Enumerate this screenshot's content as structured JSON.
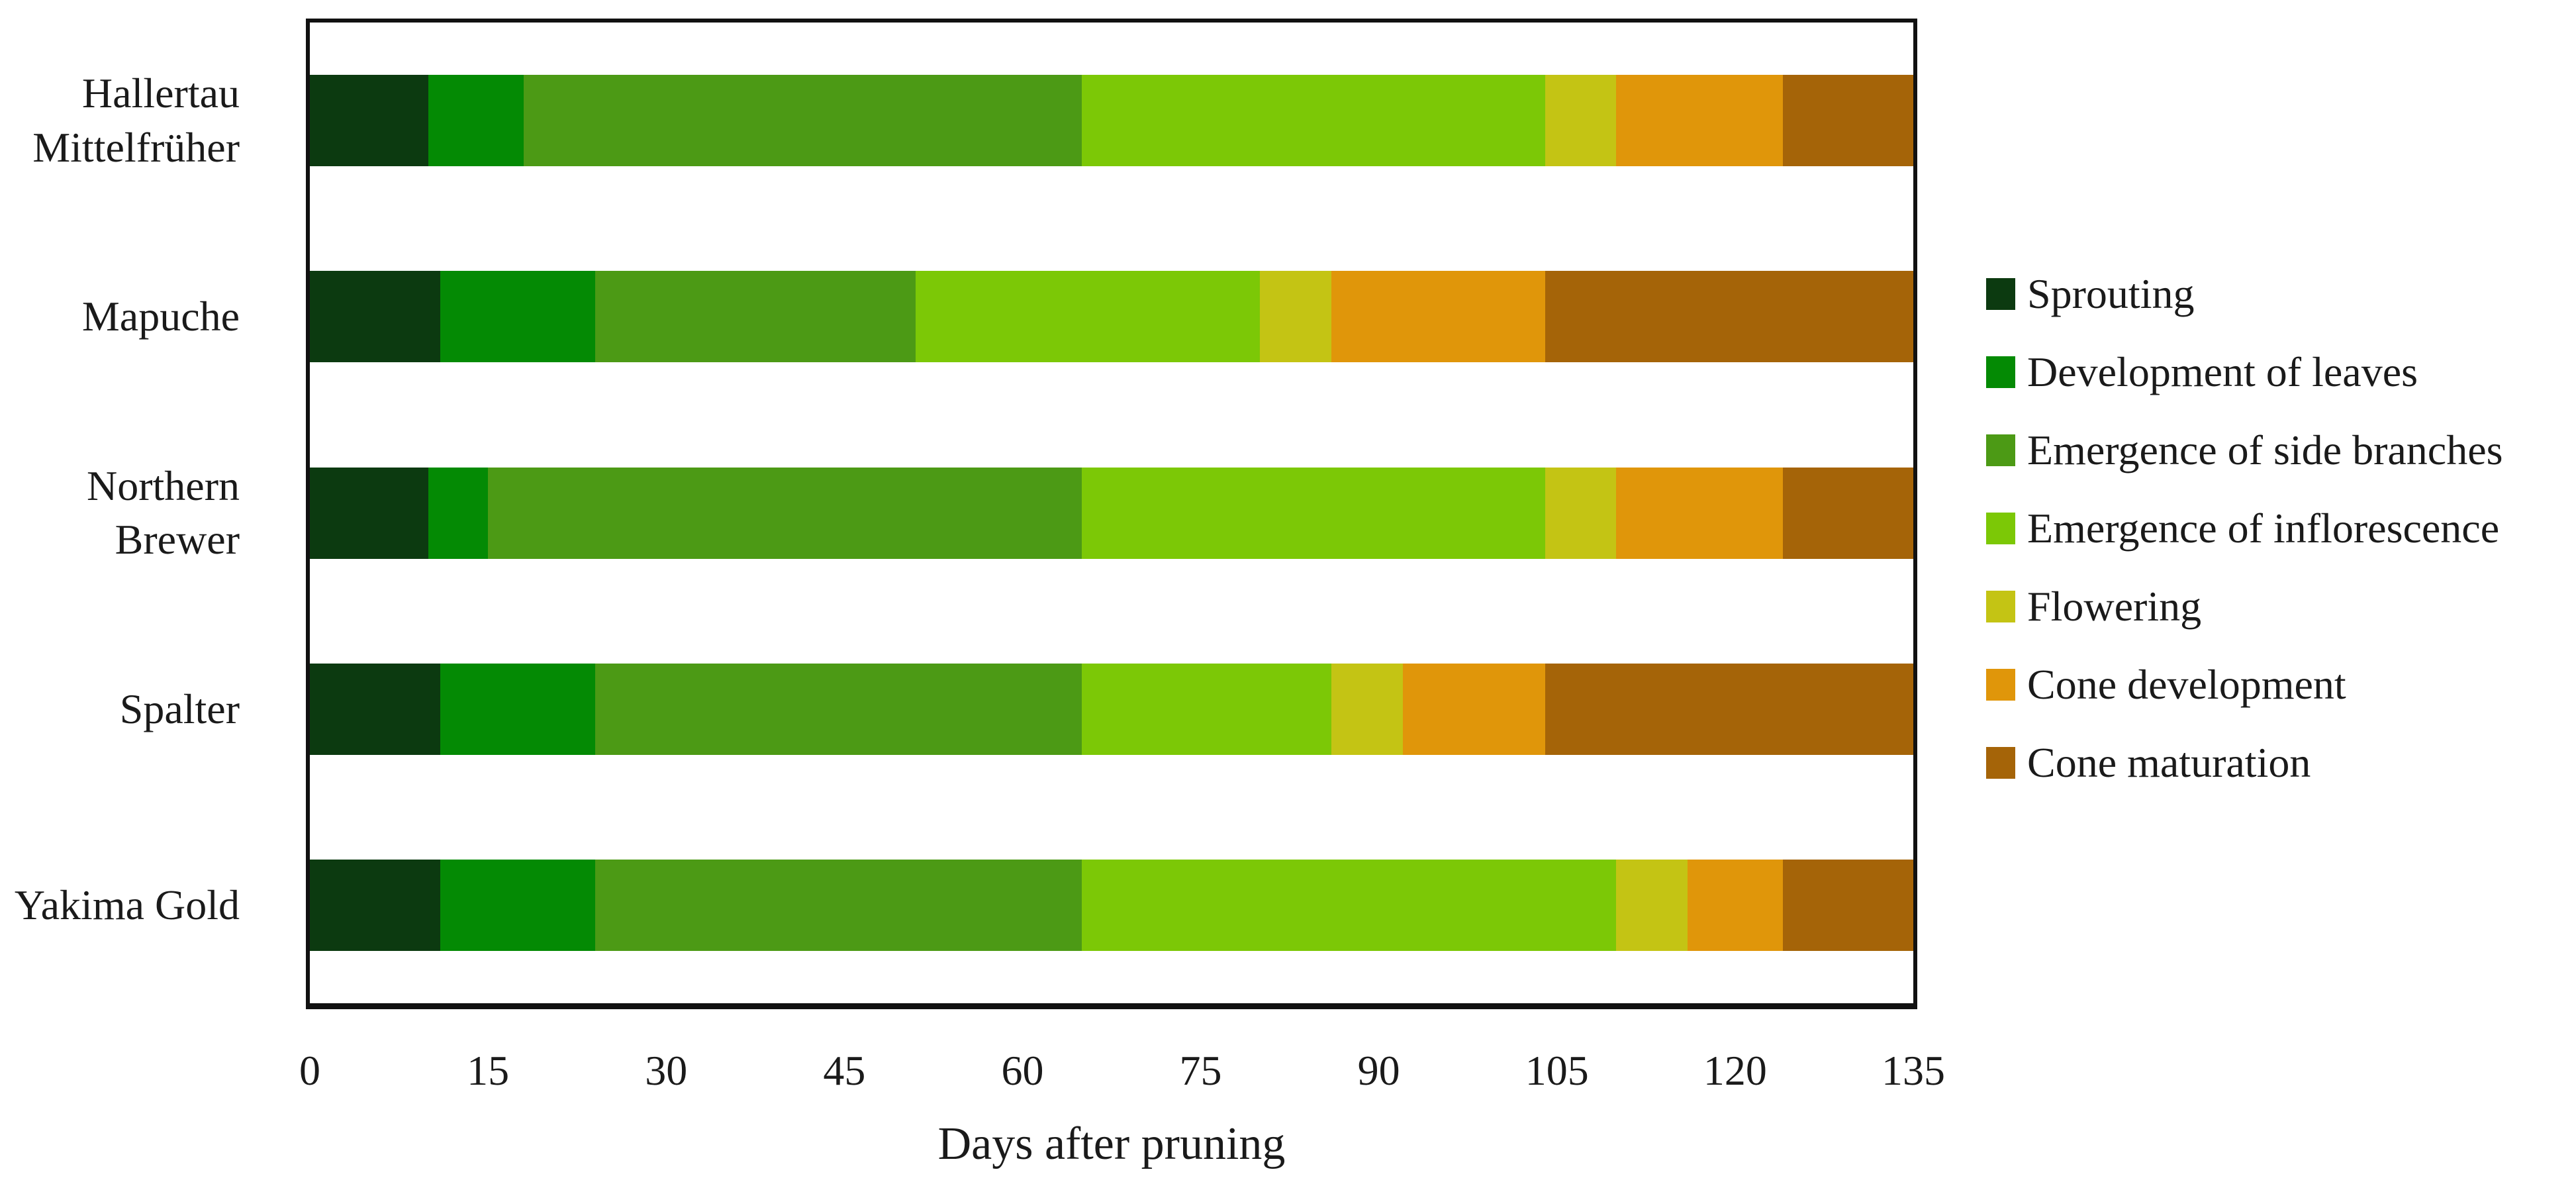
{
  "figure": {
    "background": "#ffffff",
    "axis_color": "#111111",
    "text_color": "#1a1a1a"
  },
  "chart_data": {
    "type": "bar",
    "variant": "horizontal-stacked",
    "title": "",
    "xlabel": "Days after pruning",
    "ylabel": "",
    "xlim": [
      0,
      135
    ],
    "xticks": [
      0,
      15,
      30,
      45,
      60,
      75,
      90,
      105,
      120,
      135
    ],
    "grid": false,
    "legend_position": "right",
    "unit": "days",
    "categories": [
      {
        "label": "Hallertau Mittelfrüher",
        "lines": [
          "Hallertau",
          "Mittelfrüher"
        ]
      },
      {
        "label": "Mapuche",
        "lines": [
          "Mapuche"
        ]
      },
      {
        "label": "Northern Brewer",
        "lines": [
          "Northern",
          "Brewer"
        ]
      },
      {
        "label": "Spalter",
        "lines": [
          "Spalter"
        ]
      },
      {
        "label": "Yakima Gold",
        "lines": [
          "Yakima Gold"
        ]
      }
    ],
    "series": [
      {
        "name": "Sprouting",
        "color": "#0c3a10",
        "values": [
          10,
          11,
          10,
          11,
          11
        ]
      },
      {
        "name": "Development of leaves",
        "color": "#048a04",
        "values": [
          8,
          13,
          5,
          13,
          13
        ]
      },
      {
        "name": "Emergence of side branches",
        "color": "#4c9a15",
        "values": [
          47,
          27,
          50,
          41,
          41
        ]
      },
      {
        "name": "Emergence of inflorescence",
        "color": "#7cc806",
        "values": [
          39,
          29,
          39,
          21,
          45
        ]
      },
      {
        "name": "Flowering",
        "color": "#c4c414",
        "values": [
          6,
          6,
          6,
          6,
          6
        ]
      },
      {
        "name": "Cone development",
        "color": "#e0960a",
        "values": [
          14,
          18,
          14,
          12,
          8
        ]
      },
      {
        "name": "Cone maturation",
        "color": "#a56408",
        "values": [
          11,
          31,
          11,
          31,
          11
        ]
      }
    ],
    "stack_totals": [
      135,
      135,
      135,
      135,
      135
    ]
  }
}
